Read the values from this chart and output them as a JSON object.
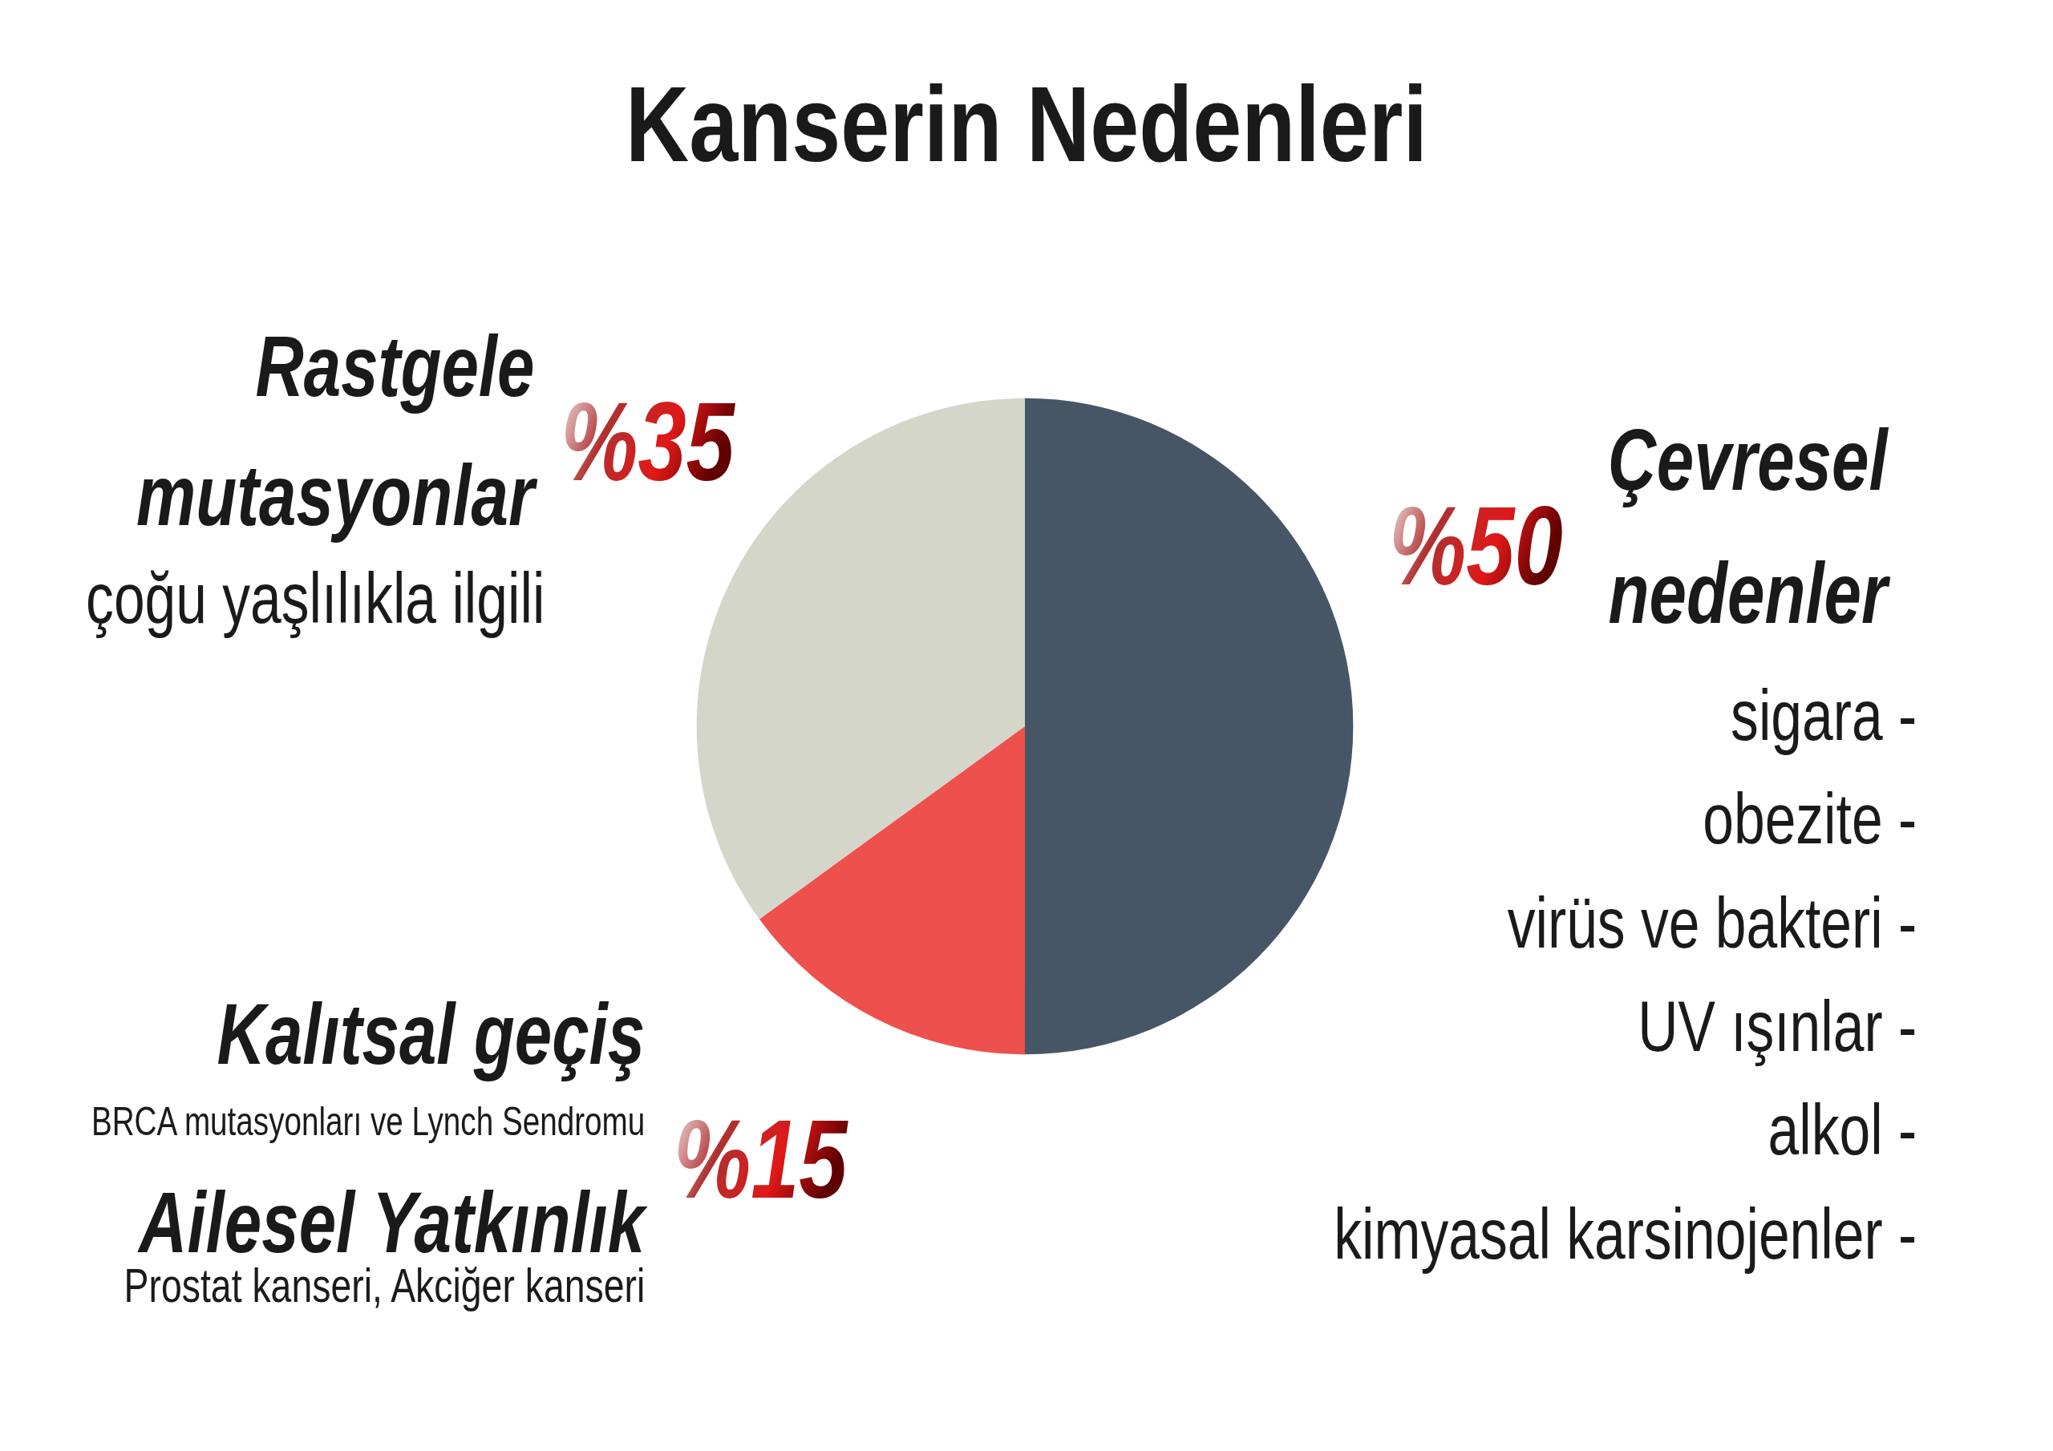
{
  "chart_data": {
    "type": "pie",
    "title": "Kanserin Nedenleri",
    "categories": [
      "Çevresel nedenler",
      "Kalıtsal geçiş",
      "Rastgele mutasyonlar"
    ],
    "values": [
      50,
      15,
      35
    ],
    "colors": [
      "#465667",
      "#ee504e",
      "#d4d6c9"
    ],
    "value_labels": [
      "%50",
      "%15",
      "%35"
    ],
    "annotations": [
      "çoğu yaşlılıkla ilgili",
      "BRCA mutasyonları ve Lynch Sendromu",
      "Ailesel Yatkınlık",
      "Prostat kanseri, Akciğer kanseri",
      "sigara -",
      "obezite -",
      "virüs ve bakteri -",
      "UV ışınlar -",
      "alkol -",
      "kimyasal karsinojenler -"
    ]
  }
}
